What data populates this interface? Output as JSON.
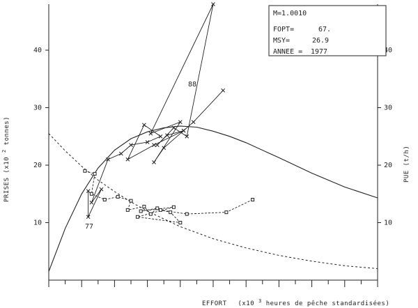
{
  "chart_data": {
    "type": "line",
    "xlabel": "EFFORT",
    "xlabel_detail": "(x10",
    "xlabel_exp": "3",
    "xlabel_tail": " heures de pêche standardisées)",
    "ylabel_left": "PRISES (x10",
    "ylabel_left_exp": "2",
    "ylabel_left_tail": " tonnes)",
    "ylabel_right": "PUE (t/h)",
    "x_range": [
      0,
      10
    ],
    "y_range": [
      0,
      48
    ],
    "yticks_left": [
      10,
      20,
      30,
      40
    ],
    "yticks_right": [
      10,
      20,
      30,
      40
    ],
    "info_box": {
      "line1": "M=1.0010",
      "line2_label": "FOPT=",
      "line2_value": "67.",
      "line3_label": "MSY=",
      "line3_value": "26.9",
      "line4_label": "ANNEE =",
      "line4_value": "1977"
    },
    "point_labels": {
      "start": "77",
      "end": "88"
    },
    "production_curve": [
      [
        0,
        1.5
      ],
      [
        0.5,
        9
      ],
      [
        1,
        15
      ],
      [
        1.5,
        19.5
      ],
      [
        2,
        22.6
      ],
      [
        2.5,
        24.6
      ],
      [
        3,
        25.8
      ],
      [
        3.5,
        26.5
      ],
      [
        4,
        26.8
      ],
      [
        4.5,
        26.6
      ],
      [
        5,
        25.9
      ],
      [
        5.5,
        25
      ],
      [
        6,
        23.9
      ],
      [
        7,
        21.3
      ],
      [
        8,
        18.6
      ],
      [
        9,
        16.2
      ],
      [
        10,
        14.3
      ]
    ],
    "pue_curve": [
      [
        0,
        25.5
      ],
      [
        0.5,
        22.5
      ],
      [
        1,
        19.8
      ],
      [
        1.5,
        17.4
      ],
      [
        2,
        15.4
      ],
      [
        2.5,
        13.6
      ],
      [
        3,
        12
      ],
      [
        4,
        9.3
      ],
      [
        5,
        7.2
      ],
      [
        6,
        5.6
      ],
      [
        7,
        4.3
      ],
      [
        8,
        3.3
      ],
      [
        9,
        2.5
      ],
      [
        10,
        2
      ]
    ],
    "catch_trajectory": [
      [
        1.2,
        15.5
      ],
      [
        1.2,
        11
      ],
      [
        1.6,
        15.8
      ],
      [
        1.3,
        13.5
      ],
      [
        1.8,
        21
      ],
      [
        2.2,
        22
      ],
      [
        2.5,
        23.5
      ],
      [
        3,
        24
      ],
      [
        3.4,
        25
      ],
      [
        2.9,
        27
      ],
      [
        2.4,
        21
      ],
      [
        3.2,
        23.5
      ],
      [
        4.1,
        26
      ],
      [
        3.6,
        25.2
      ],
      [
        3.3,
        23.5
      ],
      [
        3.8,
        26.5
      ],
      [
        4.2,
        25
      ],
      [
        5,
        48
      ],
      [
        3.1,
        25.5
      ],
      [
        4,
        27.5
      ],
      [
        3.2,
        20.5
      ],
      [
        3.5,
        23
      ],
      [
        4.1,
        26
      ],
      [
        4.4,
        27.5
      ],
      [
        5.3,
        33
      ]
    ],
    "pue_trajectory": [
      [
        1.1,
        19
      ],
      [
        1.4,
        18.5
      ],
      [
        1.3,
        15
      ],
      [
        1.7,
        14
      ],
      [
        2.1,
        14.5
      ],
      [
        2.5,
        13.8
      ],
      [
        2.4,
        12.2
      ],
      [
        2.9,
        12.8
      ],
      [
        3.1,
        11.5
      ],
      [
        3.3,
        12.5
      ],
      [
        2.8,
        12
      ],
      [
        3.8,
        12.7
      ],
      [
        2.7,
        11
      ],
      [
        4,
        10
      ],
      [
        3.7,
        11.8
      ],
      [
        3.4,
        12.2
      ],
      [
        4.2,
        11.5
      ],
      [
        5.4,
        11.8
      ],
      [
        6.2,
        14
      ]
    ],
    "grid": false
  }
}
